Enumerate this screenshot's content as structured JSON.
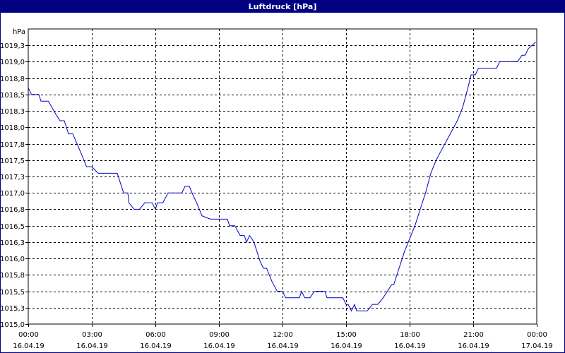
{
  "chart_data": {
    "type": "line",
    "title": "Luftdruck [hPa]",
    "ylabel": "hPa",
    "xlabel": "",
    "ylim": [
      1015.0,
      1019.5
    ],
    "y_ticks": [
      {
        "value": 1015.0,
        "label": "1015,0"
      },
      {
        "value": 1015.25,
        "label": "1015,3"
      },
      {
        "value": 1015.5,
        "label": "1015,5"
      },
      {
        "value": 1015.75,
        "label": "1015,8"
      },
      {
        "value": 1016.0,
        "label": "1016,0"
      },
      {
        "value": 1016.25,
        "label": "1016,3"
      },
      {
        "value": 1016.5,
        "label": "1016,5"
      },
      {
        "value": 1016.75,
        "label": "1016,8"
      },
      {
        "value": 1017.0,
        "label": "1017,0"
      },
      {
        "value": 1017.25,
        "label": "1017,3"
      },
      {
        "value": 1017.5,
        "label": "1017,5"
      },
      {
        "value": 1017.75,
        "label": "1017,8"
      },
      {
        "value": 1018.0,
        "label": "1018,0"
      },
      {
        "value": 1018.25,
        "label": "1018,3"
      },
      {
        "value": 1018.5,
        "label": "1018,5"
      },
      {
        "value": 1018.75,
        "label": "1018,8"
      },
      {
        "value": 1019.0,
        "label": "1019,0"
      },
      {
        "value": 1019.25,
        "label": "1019,3"
      }
    ],
    "x_ticks": [
      {
        "hour": 0,
        "time": "00:00",
        "date": "16.04.19"
      },
      {
        "hour": 3,
        "time": "03:00",
        "date": "16.04.19"
      },
      {
        "hour": 6,
        "time": "06:00",
        "date": "16.04.19"
      },
      {
        "hour": 9,
        "time": "09:00",
        "date": "16.04.19"
      },
      {
        "hour": 12,
        "time": "12:00",
        "date": "16.04.19"
      },
      {
        "hour": 15,
        "time": "15:00",
        "date": "16.04.19"
      },
      {
        "hour": 18,
        "time": "18:00",
        "date": "16.04.19"
      },
      {
        "hour": 21,
        "time": "21:00",
        "date": "16.04.19"
      },
      {
        "hour": 24,
        "time": "00:00",
        "date": "17.04.19"
      }
    ],
    "xlim_hours": [
      0,
      24
    ],
    "grid": true,
    "grid_style": "dashed",
    "series": [
      {
        "color": "#0000cc",
        "x_hours": [
          0.0,
          0.15,
          0.5,
          0.6,
          0.95,
          1.3,
          1.5,
          1.7,
          1.9,
          2.1,
          2.3,
          2.5,
          2.75,
          3.0,
          3.3,
          3.5,
          4.2,
          4.5,
          4.7,
          4.75,
          5.0,
          5.25,
          5.5,
          5.85,
          6.0,
          6.1,
          6.35,
          6.6,
          6.85,
          7.25,
          7.4,
          7.6,
          7.8,
          7.95,
          8.2,
          8.6,
          8.8,
          9.0,
          9.4,
          9.5,
          9.75,
          10.0,
          10.2,
          10.3,
          10.45,
          10.65,
          10.8,
          10.95,
          11.1,
          11.25,
          11.5,
          11.75,
          11.9,
          12.0,
          12.15,
          12.25,
          12.6,
          12.8,
          12.9,
          13.05,
          13.3,
          13.5,
          14.0,
          14.1,
          14.65,
          14.85,
          15.0,
          15.1,
          15.25,
          15.4,
          15.5,
          16.0,
          16.25,
          16.5,
          16.75,
          16.95,
          17.15,
          17.25,
          17.5,
          17.6,
          17.75,
          18.0,
          18.25,
          18.5,
          18.75,
          19.0,
          19.25,
          19.5,
          19.75,
          20.0,
          20.25,
          20.5,
          20.75,
          20.9,
          21.0,
          21.1,
          21.25,
          21.5,
          22.0,
          22.1,
          22.25,
          22.5,
          23.0,
          23.1,
          23.3,
          23.45,
          23.6,
          23.95
        ],
        "values": [
          1018.6,
          1018.5,
          1018.5,
          1018.4,
          1018.4,
          1018.2,
          1018.1,
          1018.1,
          1017.9,
          1017.9,
          1017.75,
          1017.6,
          1017.4,
          1017.4,
          1017.3,
          1017.3,
          1017.3,
          1017.0,
          1017.0,
          1016.85,
          1016.75,
          1016.75,
          1016.85,
          1016.85,
          1016.75,
          1016.85,
          1016.85,
          1017.0,
          1017.0,
          1017.0,
          1017.1,
          1017.1,
          1016.95,
          1016.85,
          1016.65,
          1016.6,
          1016.6,
          1016.6,
          1016.6,
          1016.5,
          1016.5,
          1016.35,
          1016.35,
          1016.25,
          1016.35,
          1016.25,
          1016.1,
          1015.95,
          1015.85,
          1015.85,
          1015.65,
          1015.5,
          1015.5,
          1015.5,
          1015.4,
          1015.4,
          1015.4,
          1015.4,
          1015.5,
          1015.4,
          1015.4,
          1015.5,
          1015.5,
          1015.4,
          1015.4,
          1015.4,
          1015.3,
          1015.3,
          1015.2,
          1015.3,
          1015.2,
          1015.2,
          1015.3,
          1015.3,
          1015.4,
          1015.5,
          1015.6,
          1015.6,
          1015.85,
          1015.95,
          1016.1,
          1016.3,
          1016.5,
          1016.75,
          1017.0,
          1017.3,
          1017.5,
          1017.65,
          1017.8,
          1017.95,
          1018.1,
          1018.3,
          1018.6,
          1018.8,
          1018.8,
          1018.8,
          1018.9,
          1018.9,
          1018.9,
          1018.9,
          1019.0,
          1019.0,
          1019.0,
          1019.0,
          1019.1,
          1019.1,
          1019.2,
          1019.3
        ]
      }
    ]
  }
}
